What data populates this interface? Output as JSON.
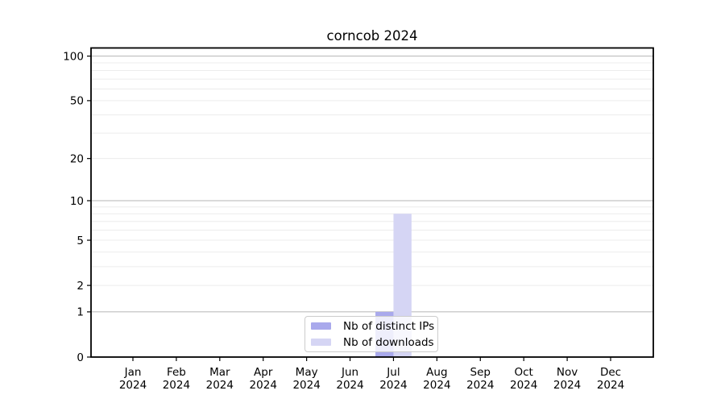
{
  "chart_data": {
    "type": "bar",
    "title": "corncob 2024",
    "categories": [
      "Jan 2024",
      "Feb 2024",
      "Mar 2024",
      "Apr 2024",
      "May 2024",
      "Jun 2024",
      "Jul 2024",
      "Aug 2024",
      "Sep 2024",
      "Oct 2024",
      "Nov 2024",
      "Dec 2024"
    ],
    "series": [
      {
        "name": "Nb of distinct IPs",
        "color": "#a9a9ec",
        "values": [
          0,
          0,
          0,
          0,
          0,
          0,
          1,
          0,
          0,
          0,
          0,
          0
        ]
      },
      {
        "name": "Nb of downloads",
        "color": "#d5d5f4",
        "values": [
          0,
          0,
          0,
          0,
          0,
          0,
          8,
          0,
          0,
          0,
          0,
          0
        ]
      }
    ],
    "yscale": "log1p",
    "ylim": [
      0,
      100
    ],
    "yticks": [
      0,
      1,
      2,
      5,
      10,
      20,
      50,
      100
    ],
    "major_gridlines": [
      1,
      10,
      100
    ],
    "minor_gridlines": [
      2,
      3,
      4,
      5,
      6,
      7,
      8,
      9,
      20,
      30,
      40,
      50,
      60,
      70,
      80,
      90
    ],
    "grid": true,
    "legend_position": "bottom-center",
    "colors": {
      "major_grid": "#b4b4b4",
      "minor_grid": "#ececec",
      "spine": "#000000",
      "tick_text": "#000000",
      "legend_border": "#cccccc"
    }
  }
}
